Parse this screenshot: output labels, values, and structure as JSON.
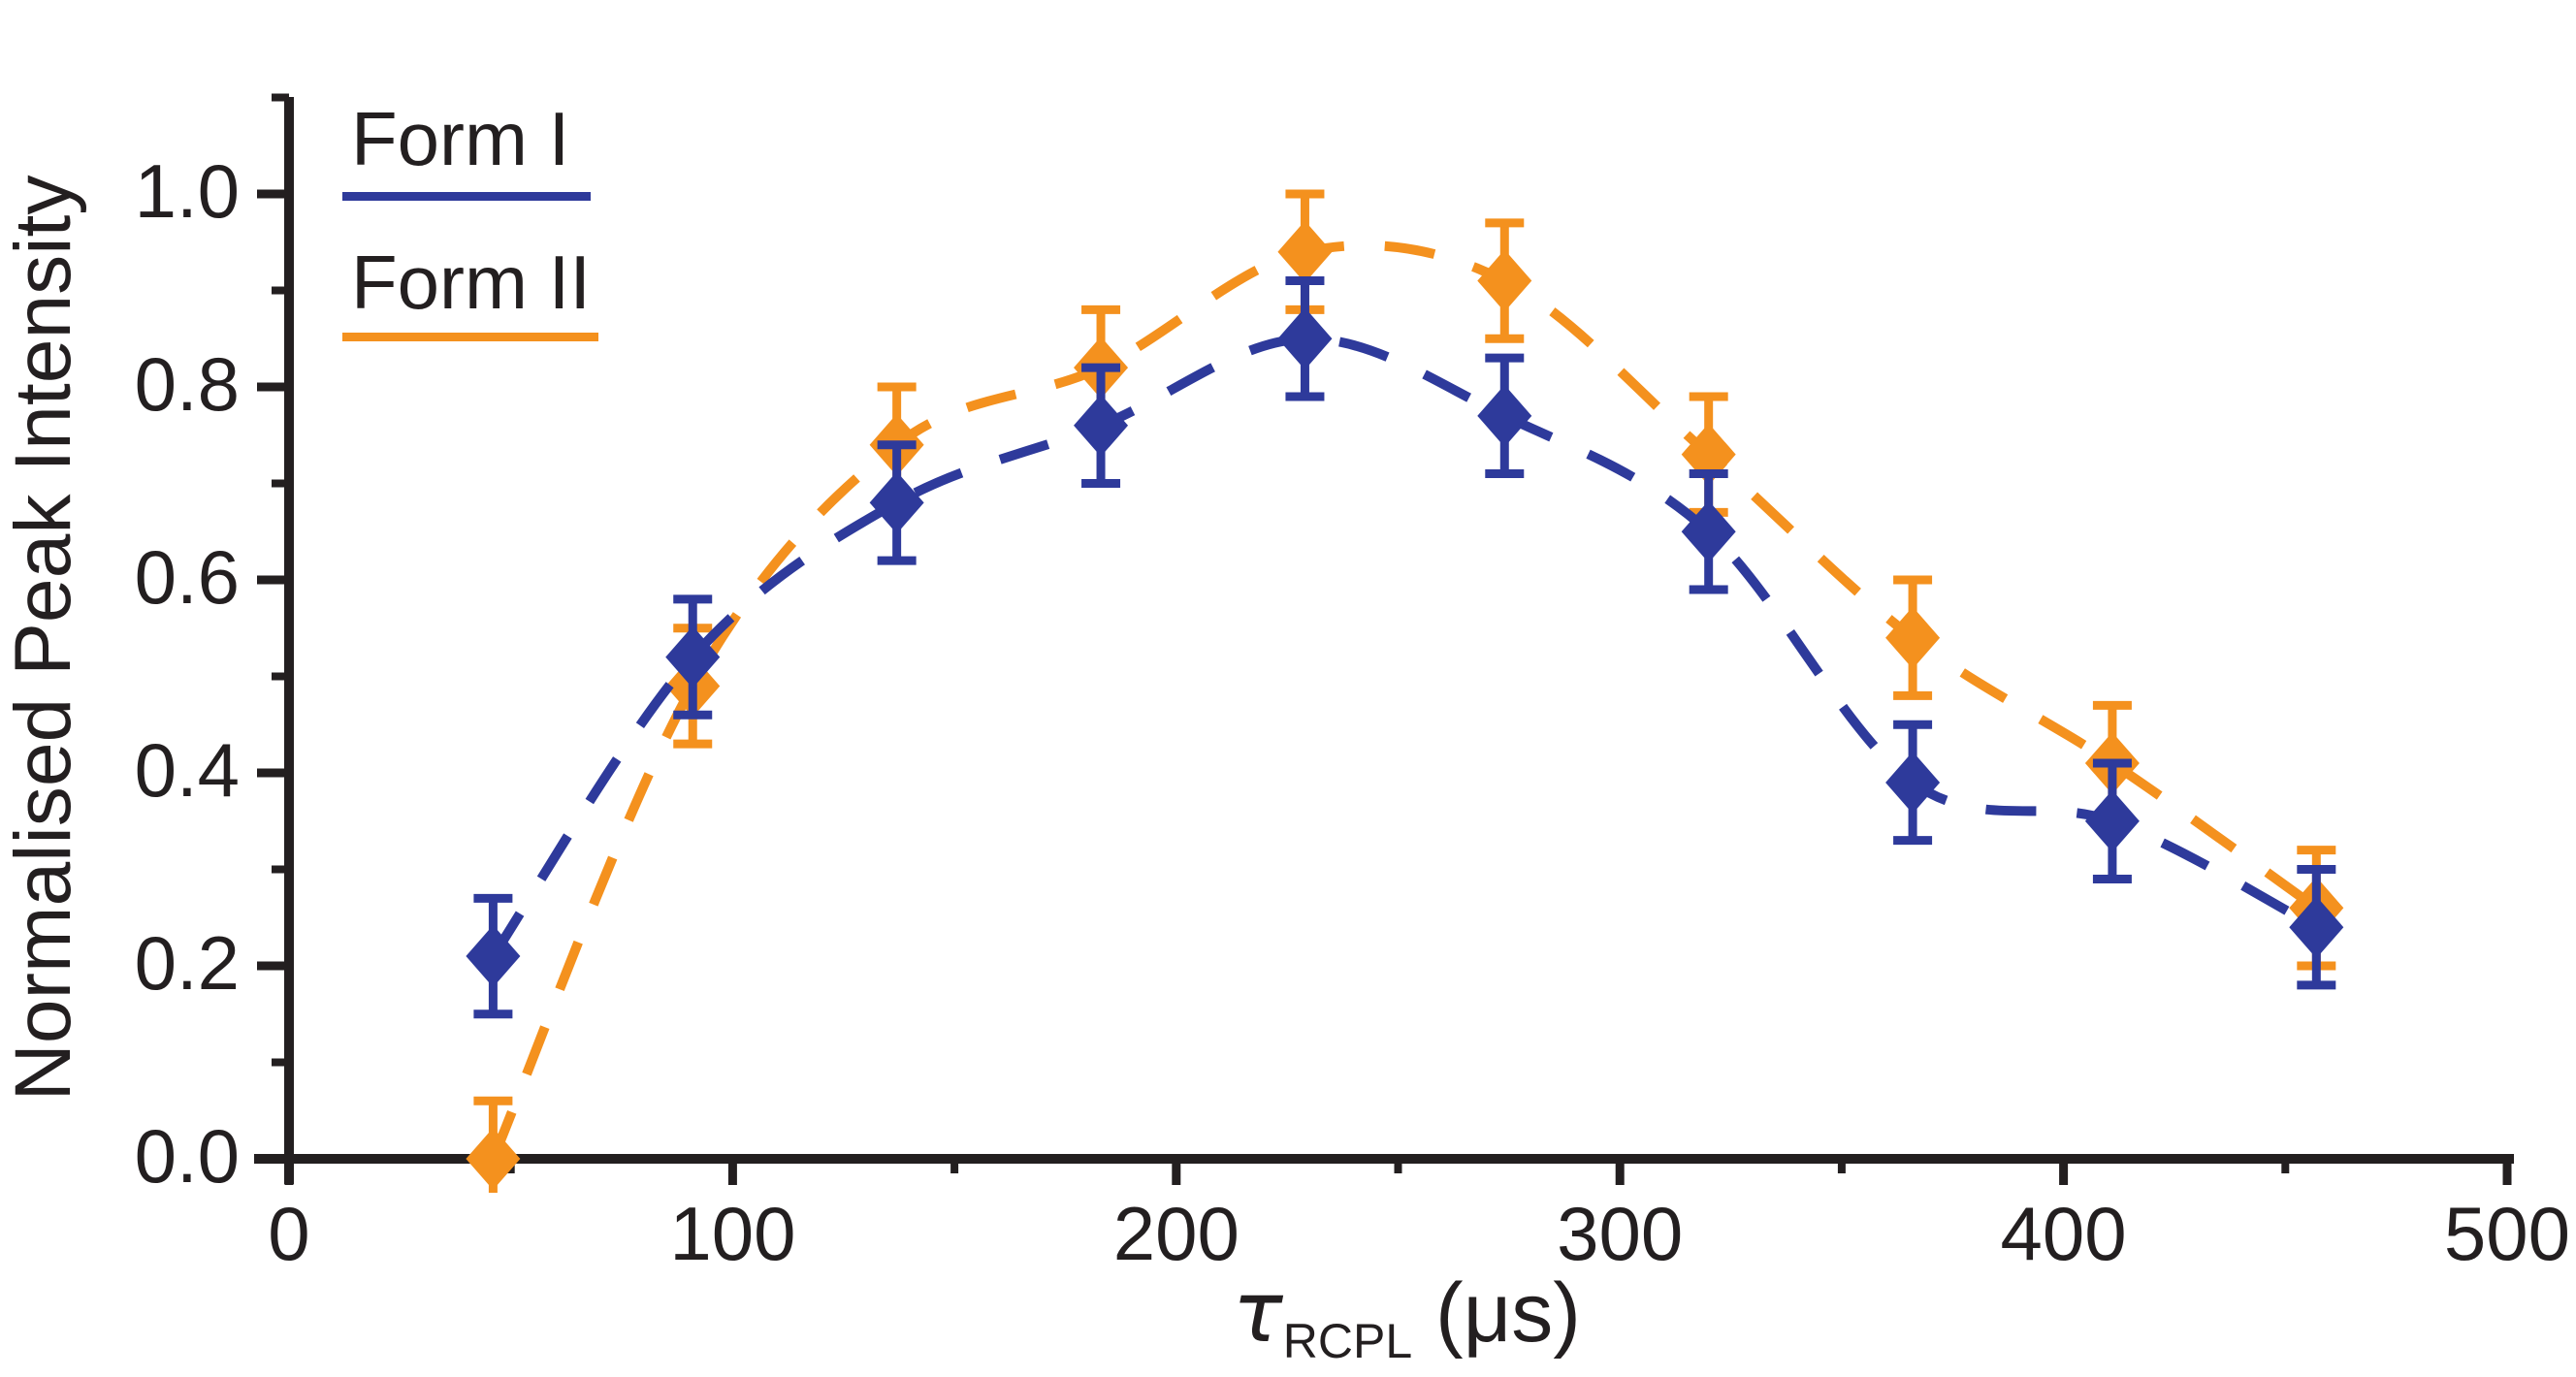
{
  "page": {
    "background": "#ffffff"
  },
  "chart_data": {
    "type": "line",
    "title": "",
    "ylabel": "Normalised Peak Intensity",
    "xlabel": {
      "symbol": "τ",
      "subscript": "RCPL",
      "suffix": " (μs)"
    },
    "axis_color": "#231f20",
    "grid": false,
    "xlim": [
      0,
      500
    ],
    "ylim": [
      0.0,
      1.0
    ],
    "x_major_ticks": [
      0,
      100,
      200,
      300,
      400,
      500
    ],
    "x_minor_ticks": [
      50,
      150,
      250,
      350,
      450
    ],
    "y_major_ticks": [
      0.0,
      0.2,
      0.4,
      0.6,
      0.8,
      1.0
    ],
    "y_minor_ticks": [
      0.1,
      0.3,
      0.5,
      0.7,
      0.9,
      1.1
    ],
    "y_tick_decimals": 1,
    "legend": {
      "position": "top-left",
      "entries": [
        {
          "label": "Form I",
          "color": "#2e3a9b"
        },
        {
          "label": "Form II",
          "color": "#f4911e"
        }
      ]
    },
    "series": [
      {
        "name": "Form I",
        "color": "#2e3a9b",
        "marker": "diamond",
        "line_style": "dashed",
        "smooth": true,
        "x": [
          46,
          91,
          137,
          183,
          229,
          274,
          320,
          366,
          411,
          457
        ],
        "y": [
          0.21,
          0.52,
          0.68,
          0.76,
          0.85,
          0.77,
          0.65,
          0.39,
          0.35,
          0.24
        ],
        "yerr": [
          0.06,
          0.06,
          0.06,
          0.06,
          0.06,
          0.06,
          0.06,
          0.06,
          0.06,
          0.06
        ]
      },
      {
        "name": "Form II",
        "color": "#f4911e",
        "marker": "diamond",
        "line_style": "dashed",
        "smooth": true,
        "x": [
          46,
          91,
          137,
          183,
          229,
          274,
          320,
          366,
          411,
          457
        ],
        "y": [
          0.0,
          0.49,
          0.74,
          0.82,
          0.94,
          0.91,
          0.73,
          0.54,
          0.41,
          0.26
        ],
        "yerr": [
          0.06,
          0.06,
          0.06,
          0.06,
          0.06,
          0.06,
          0.06,
          0.06,
          0.06,
          0.06
        ]
      }
    ],
    "draw_order": [
      "Form II",
      "Form I"
    ]
  }
}
